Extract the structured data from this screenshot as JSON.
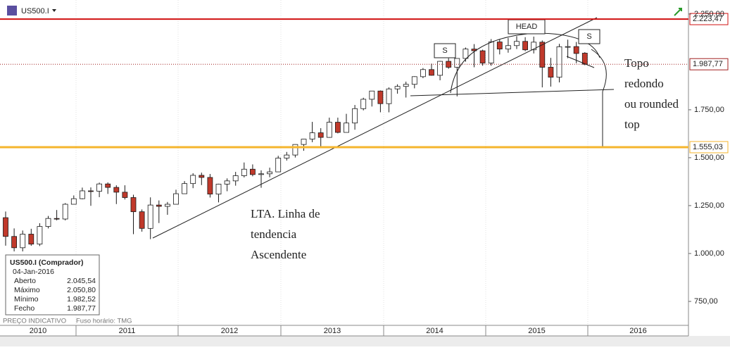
{
  "header": {
    "symbol": "US500.I"
  },
  "chart_data": {
    "type": "candlestick",
    "open": [
      1187,
      1089,
      1030,
      1101,
      1049,
      1141,
      1183,
      1180,
      1257,
      1286,
      1327,
      1325,
      1363,
      1345,
      1320,
      1292,
      1218,
      1131,
      1253,
      1246,
      1257,
      1312,
      1365,
      1408,
      1397,
      1310,
      1362,
      1379,
      1406,
      1440,
      1412,
      1416,
      1426,
      1498,
      1514,
      1569,
      1597,
      1630,
      1606,
      1685,
      1632,
      1681,
      1756,
      1805,
      1848,
      1782,
      1859,
      1872,
      1883,
      1923,
      1960,
      1930,
      2003,
      1972,
      2018,
      2067,
      2058,
      1994,
      2104,
      2067,
      2085,
      2107,
      2063,
      2103,
      1972,
      1920,
      2079,
      2080,
      2045.54
    ],
    "high": [
      1219,
      1131,
      1120,
      1129,
      1158,
      1196,
      1227,
      1263,
      1303,
      1344,
      1345,
      1370,
      1371,
      1356,
      1356,
      1307,
      1230,
      1293,
      1277,
      1269,
      1333,
      1378,
      1419,
      1422,
      1415,
      1364,
      1392,
      1426,
      1475,
      1465,
      1434,
      1448,
      1510,
      1530,
      1570,
      1598,
      1687,
      1654,
      1709,
      1709,
      1729,
      1775,
      1813,
      1849,
      1851,
      1867,
      1883,
      1897,
      1925,
      1968,
      1991,
      2005,
      2019,
      2018,
      2075,
      2093,
      2064,
      2119,
      2117,
      2125,
      2134,
      2129,
      2132,
      2112,
      2021,
      2094,
      2116,
      2104,
      2050.8
    ],
    "low": [
      1041,
      1011,
      1011,
      1040,
      1039,
      1131,
      1173,
      1173,
      1262,
      1283,
      1249,
      1294,
      1311,
      1258,
      1282,
      1101,
      1114,
      1075,
      1159,
      1202,
      1263,
      1312,
      1341,
      1357,
      1292,
      1267,
      1325,
      1354,
      1397,
      1403,
      1343,
      1398,
      1426,
      1485,
      1501,
      1536,
      1581,
      1560,
      1604,
      1627,
      1633,
      1646,
      1747,
      1767,
      1737,
      1737,
      1834,
      1814,
      1862,
      1915,
      1928,
      1904,
      1964,
      1820,
      2001,
      1972,
      1980,
      1980,
      2039,
      2048,
      2067,
      2056,
      2044,
      1867,
      1871,
      1893,
      2019,
      1993,
      1982.52
    ],
    "close": [
      1089,
      1030,
      1101,
      1049,
      1141,
      1183,
      1180,
      1257,
      1286,
      1327,
      1325,
      1363,
      1345,
      1320,
      1292,
      1218,
      1131,
      1253,
      1246,
      1257,
      1312,
      1365,
      1408,
      1397,
      1310,
      1362,
      1379,
      1406,
      1440,
      1412,
      1416,
      1426,
      1498,
      1514,
      1569,
      1597,
      1630,
      1606,
      1685,
      1632,
      1681,
      1756,
      1805,
      1848,
      1782,
      1859,
      1872,
      1883,
      1923,
      1960,
      1930,
      2003,
      1972,
      2018,
      2067,
      2058,
      1994,
      2104,
      2067,
      2085,
      2107,
      2063,
      2103,
      1972,
      1920,
      2079,
      2080,
      2044,
      1987.77
    ],
    "up_color": "#ffffff",
    "down_color": "#c0392b",
    "outline_color": "#1a1a1a",
    "ylim": [
      625,
      2323
    ],
    "yticks": [
      {
        "value": 750,
        "label": "750,00"
      },
      {
        "value": 1000,
        "label": "1.000,00"
      },
      {
        "value": 1250,
        "label": "1.250,00"
      },
      {
        "value": 1500,
        "label": "1.500,00"
      },
      {
        "value": 1750,
        "label": "1.750,00"
      },
      {
        "value": 2250,
        "label": "2.250,00"
      }
    ],
    "x_labels": [
      "2010",
      "2011",
      "2012",
      "2013",
      "2014",
      "2015",
      "2016"
    ],
    "levels": [
      {
        "value": 2223.47,
        "label": "2.223,47",
        "color": "#d01010",
        "style": "solid"
      },
      {
        "value": 1987.77,
        "label": "1.987,77",
        "color": "#a02020",
        "style": "dotted"
      },
      {
        "value": 1555.03,
        "label": "1.555,03",
        "color": "#f5b52e",
        "style": "thick"
      }
    ],
    "annotations": {
      "trend": [
        "LTA. Linha de",
        "tendencia",
        "Ascendente"
      ],
      "top": [
        "Topo",
        "redondo",
        "ou rounded",
        "top"
      ],
      "head": "HEAD",
      "left_shoulder": "S",
      "right_shoulder": "S"
    }
  },
  "info_box": {
    "title": "US500.I (Comprador)",
    "date": "04-Jan-2016",
    "rows": [
      [
        "Aberto",
        "2.045,54"
      ],
      [
        "Máximo",
        "2.050,80"
      ],
      [
        "Mínimo",
        "1.982,52"
      ],
      [
        "Fecho",
        "1.987,77"
      ]
    ]
  },
  "footer": {
    "note": "PREÇO INDICATIVO",
    "timezone": "Fuso horário: TMG"
  }
}
